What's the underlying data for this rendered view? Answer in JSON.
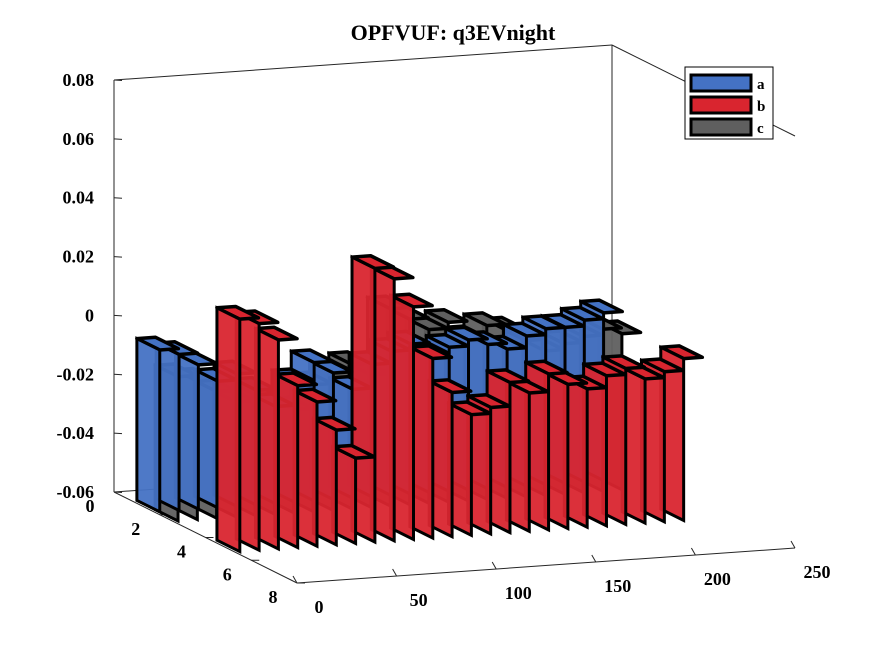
{
  "chart_data": {
    "type": "3d-ribbon",
    "title": "OPFVUF: q3EVnight",
    "xlabel": "",
    "ylabel": "",
    "zlabel": "",
    "x_range": [
      0,
      250
    ],
    "y_range": [
      0,
      8
    ],
    "z_range": [
      -0.06,
      0.08
    ],
    "x_ticks": [
      "0",
      "50",
      "100",
      "150",
      "200",
      "250"
    ],
    "y_ticks": [
      "0",
      "2",
      "4",
      "6",
      "8"
    ],
    "z_ticks": [
      "-0.06",
      "-0.04",
      "-0.02",
      "0",
      "0.02",
      "0.04",
      "0.06",
      "0.08"
    ],
    "legend_position": "top-right",
    "grid": false,
    "series": [
      {
        "name": "a",
        "color": "#4472C4",
        "values": [
          -0.004,
          -0.006,
          -0.01,
          -0.016,
          -0.014,
          -0.02,
          -0.026,
          -0.018,
          -0.012,
          -0.016,
          -0.022,
          -0.014,
          -0.01,
          -0.008,
          -0.012,
          -0.01,
          -0.008,
          -0.01,
          -0.012,
          -0.008,
          -0.006,
          -0.006,
          -0.004,
          -0.002
        ]
      },
      {
        "name": "b",
        "color": "#D9252F",
        "values": [
          0.02,
          0.018,
          0.012,
          -0.004,
          -0.01,
          -0.02,
          -0.03,
          0.034,
          0.03,
          0.02,
          0.002,
          -0.01,
          -0.018,
          -0.016,
          -0.008,
          -0.012,
          -0.006,
          -0.01,
          -0.012,
          -0.008,
          -0.006,
          -0.01,
          -0.008,
          -0.004
        ]
      },
      {
        "name": "c",
        "color": "#5F5F5F",
        "values": [
          -0.01,
          -0.012,
          -0.016,
          -0.02,
          -0.018,
          -0.022,
          -0.024,
          -0.016,
          -0.012,
          -0.01,
          -0.014,
          0.008,
          0.004,
          0.0,
          0.002,
          -0.004,
          0.0,
          -0.002,
          -0.006,
          -0.01,
          -0.008,
          -0.006,
          -0.004,
          -0.006
        ]
      }
    ]
  }
}
